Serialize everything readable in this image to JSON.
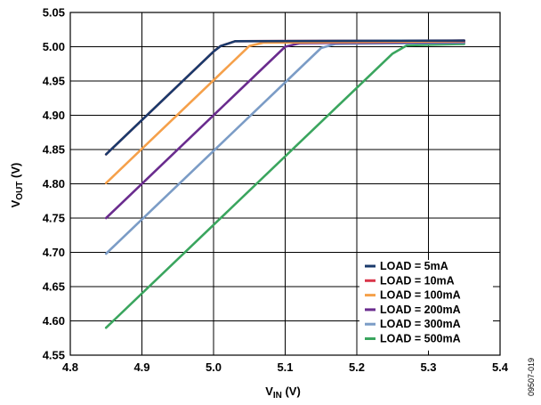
{
  "chart_data": {
    "type": "line",
    "title": "",
    "xlabel": {
      "main": "V",
      "sub": "IN",
      "unit": " (V)"
    },
    "ylabel": {
      "main": "V",
      "sub": "OUT",
      "unit": " (V)"
    },
    "xlim": [
      4.8,
      5.4
    ],
    "ylim": [
      4.55,
      5.05
    ],
    "xticks": [
      "4.8",
      "4.9",
      "5.0",
      "5.1",
      "5.2",
      "5.3",
      "5.4"
    ],
    "yticks": [
      "4.55",
      "4.60",
      "4.65",
      "4.70",
      "4.75",
      "4.80",
      "4.85",
      "4.90",
      "4.95",
      "5.00",
      "5.05"
    ],
    "grid": true,
    "legend_position": "bottom-right",
    "series": [
      {
        "name": "LOAD = 5mA",
        "color": "#1a3a6b",
        "points": [
          [
            4.85,
            4.843
          ],
          [
            5.0,
            4.993
          ],
          [
            5.01,
            5.001
          ],
          [
            5.03,
            5.008
          ],
          [
            5.35,
            5.009
          ]
        ]
      },
      {
        "name": "LOAD = 10mA",
        "color": "#d9364a",
        "points": [
          [
            4.85,
            4.843
          ],
          [
            5.0,
            4.993
          ],
          [
            5.01,
            5.001
          ],
          [
            5.03,
            5.008
          ],
          [
            5.35,
            5.009
          ]
        ]
      },
      {
        "name": "LOAD = 100mA",
        "color": "#f5a04a",
        "points": [
          [
            4.85,
            4.801
          ],
          [
            5.05,
            5.001
          ],
          [
            5.07,
            5.006
          ],
          [
            5.35,
            5.008
          ]
        ]
      },
      {
        "name": "LOAD = 200mA",
        "color": "#6a2c8e",
        "points": [
          [
            4.85,
            4.75
          ],
          [
            5.1,
            5.0
          ],
          [
            5.12,
            5.005
          ],
          [
            5.35,
            5.007
          ]
        ]
      },
      {
        "name": "LOAD = 300mA",
        "color": "#7b9cc6",
        "points": [
          [
            4.85,
            4.698
          ],
          [
            5.15,
            4.998
          ],
          [
            5.17,
            5.004
          ],
          [
            5.35,
            5.006
          ]
        ]
      },
      {
        "name": "LOAD = 500mA",
        "color": "#3aa55e",
        "points": [
          [
            4.85,
            4.59
          ],
          [
            5.25,
            4.99
          ],
          [
            5.27,
            5.002
          ],
          [
            5.35,
            5.004
          ]
        ]
      }
    ]
  },
  "figure_id": "09507-019"
}
